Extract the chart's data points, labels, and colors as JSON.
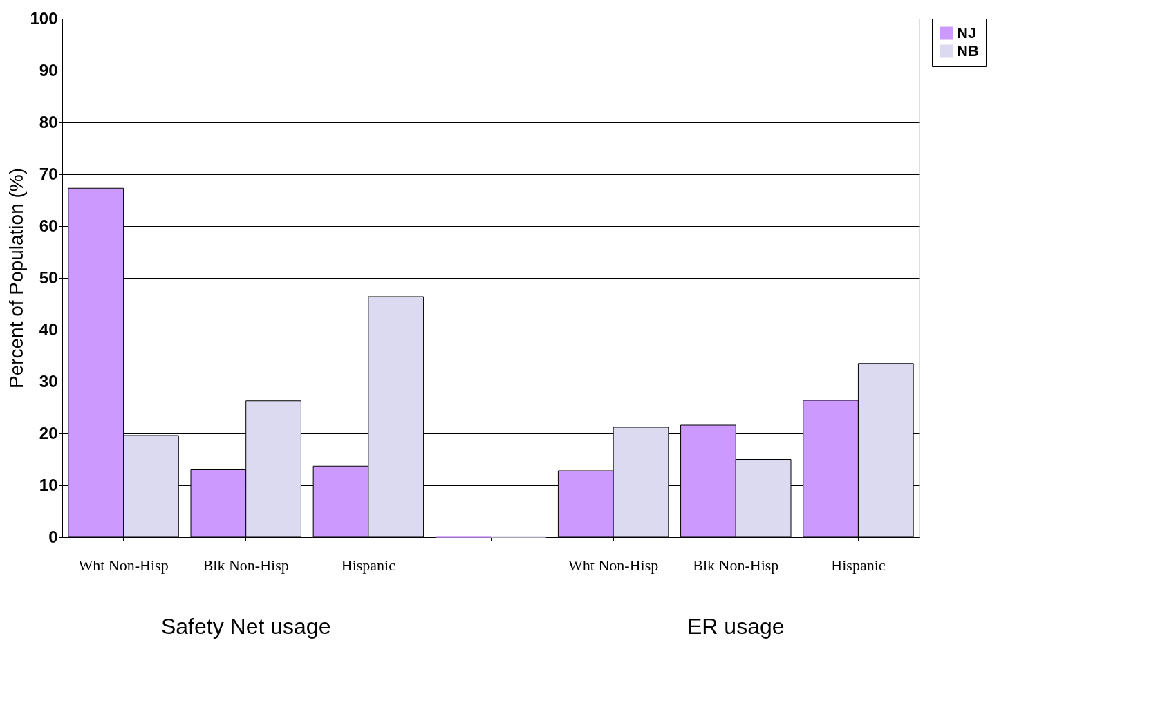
{
  "chart_data": {
    "type": "bar",
    "ylabel": "Percent of Population (%)",
    "categories": [
      "Wht Non-Hisp",
      "Blk Non-Hisp",
      "Hispanic",
      null,
      "Wht Non-Hisp",
      "Blk Non-Hisp",
      "Hispanic"
    ],
    "series": [
      {
        "name": "NJ",
        "color": "#cc99ff",
        "values": [
          67.3,
          13,
          13.7,
          0,
          12.8,
          21.6,
          26.4
        ]
      },
      {
        "name": "NB",
        "color": "#dcdaf0",
        "values": [
          19.6,
          26.3,
          46.4,
          0,
          21.2,
          15,
          33.5
        ]
      }
    ],
    "ylim": [
      0,
      100
    ],
    "yticks": [
      0,
      10,
      20,
      30,
      40,
      50,
      60,
      70,
      80,
      90,
      100
    ],
    "grid": "y",
    "legend": "right",
    "annotations": [
      "Safety Net usage",
      "ER usage"
    ]
  }
}
